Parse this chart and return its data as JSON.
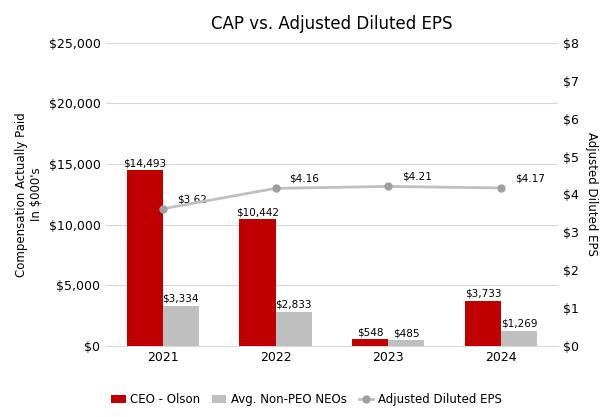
{
  "title": "CAP vs. Adjusted Diluted EPS",
  "years": [
    2021,
    2022,
    2023,
    2024
  ],
  "ceo_values": [
    14493,
    10442,
    548,
    3733
  ],
  "neo_values": [
    3334,
    2833,
    485,
    1269
  ],
  "eps_values": [
    3.62,
    4.16,
    4.21,
    4.17
  ],
  "ceo_labels": [
    "$14,493",
    "$10,442",
    "$548",
    "$3,733"
  ],
  "neo_labels": [
    "$3,334",
    "$2,833",
    "$485",
    "$1,269"
  ],
  "eps_labels": [
    "$3.62",
    "$4.16",
    "$4.21",
    "$4.17"
  ],
  "ceo_color": "#C00000",
  "neo_color": "#BFBFBF",
  "eps_line_color": "#C0C0C0",
  "eps_marker_color": "#A0A0A0",
  "ylabel_left": "Compensation Actually Paid\nIn $000's",
  "ylabel_right": "Adjusted Diluted EPS",
  "ylim_left": [
    0,
    25000
  ],
  "ylim_right": [
    0,
    8
  ],
  "yticks_left": [
    0,
    5000,
    10000,
    15000,
    20000,
    25000
  ],
  "yticks_right": [
    0,
    1,
    2,
    3,
    4,
    5,
    6,
    7,
    8
  ],
  "bar_width": 0.32,
  "background_color": "#FFFFFF",
  "grid_color": "#D9D9D9",
  "legend_labels": [
    "CEO - Olson",
    "Avg. Non-PEO NEOs",
    "Adjusted Diluted EPS"
  ],
  "label_fontsize": 7.5,
  "axis_fontsize": 9,
  "title_fontsize": 12
}
